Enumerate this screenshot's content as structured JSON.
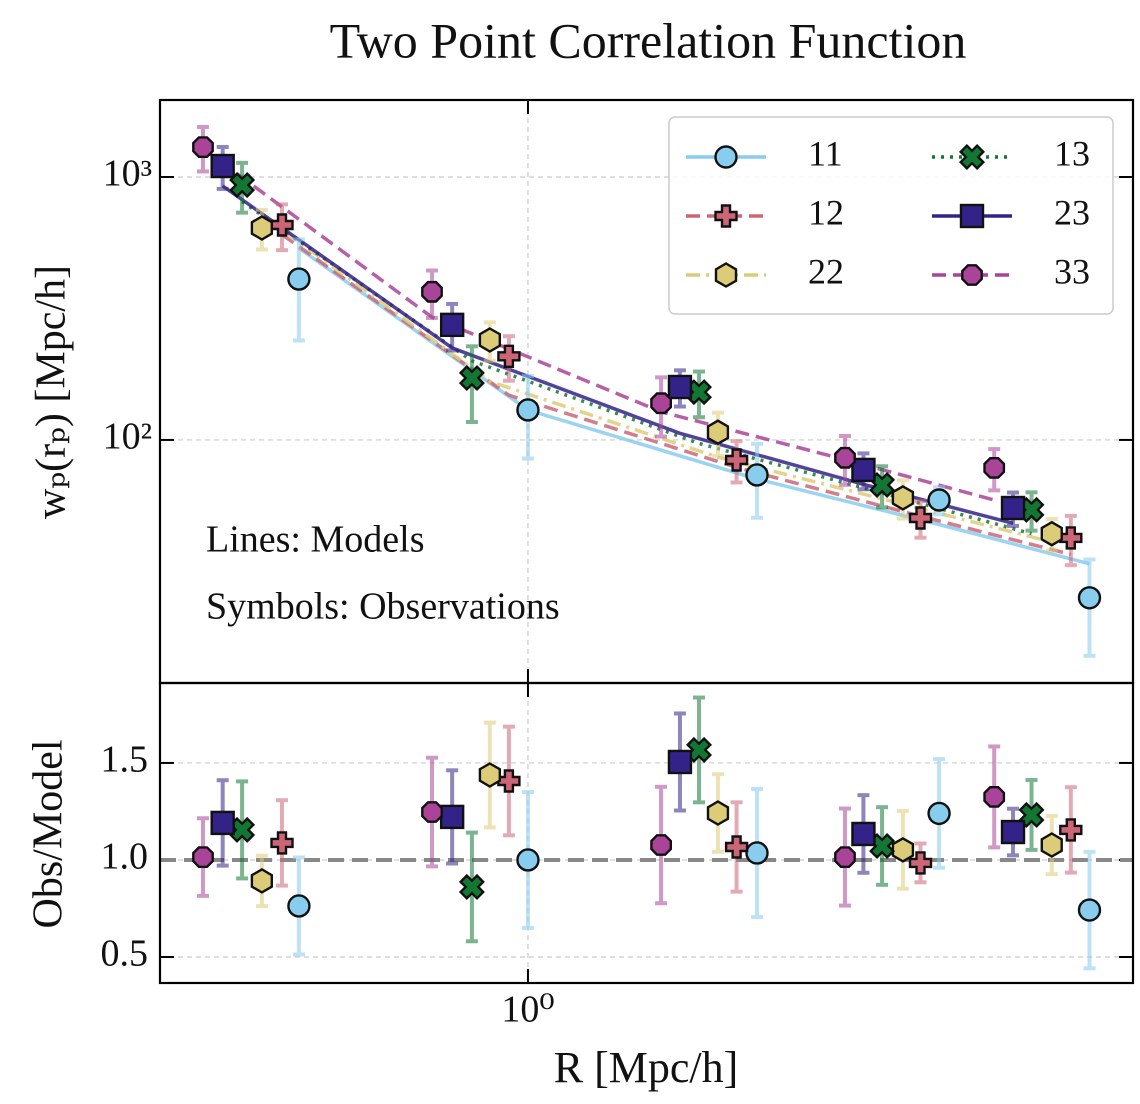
{
  "chart_data": [
    {
      "type": "line",
      "title": "Two Point Correlation Function",
      "ylabel": "wₚ(rₚ) [Mpc/h]",
      "log_x": true,
      "log_y": true,
      "xlim": [
        0.3284,
        6.24
      ],
      "ylim": [
        11.9,
        1963
      ],
      "yticks": [
        {
          "value": 100,
          "label": "10²"
        },
        {
          "value": 1000,
          "label": "10³"
        }
      ],
      "grid": true,
      "legend": "upper right",
      "legend_columns": 2,
      "annotations": [
        "Lines: Models",
        "Symbols: Observations"
      ],
      "series": [
        {
          "name": "11",
          "color": "#88ccee",
          "marker": "circle",
          "linestyle": "solid",
          "x": [
            0.5,
            1.0,
            2.0,
            3.47,
            5.47
          ],
          "values": [
            409,
            130,
            73.6,
            59.1,
            25.1
          ],
          "errors": [
            170,
            45,
            23,
            7,
            10
          ],
          "model": [
            536,
            130,
            71,
            47.7,
            33.8
          ]
        },
        {
          "name": "12",
          "color": "#cc6677",
          "marker": "plus",
          "linestyle": "dashed",
          "x": [
            0.475,
            0.944,
            1.88,
            3.28,
            5.17
          ],
          "values": [
            657,
            208,
            83.9,
            50.5,
            42.4
          ],
          "errors": [
            130,
            40,
            15,
            8,
            9
          ],
          "model": [
            604,
            148,
            78.6,
            51.3,
            36.7
          ]
        },
        {
          "name": "22",
          "color": "#ddcc77",
          "marker": "hexagon",
          "linestyle": "dashdot",
          "x": [
            0.447,
            0.891,
            1.777,
            3.11,
            4.88
          ],
          "values": [
            640,
            240,
            107,
            60.2,
            44
          ],
          "errors": [
            110,
            40,
            20,
            10,
            6
          ],
          "model": [
            717,
            167,
            86,
            57,
            40.9
          ]
        },
        {
          "name": "13",
          "color": "#117733",
          "marker": "x",
          "linestyle": "dotted",
          "x": [
            0.421,
            0.844,
            1.678,
            2.92,
            4.59
          ],
          "values": [
            932,
            172,
            152,
            67.4,
            54.2
          ],
          "errors": [
            200,
            55,
            30,
            12,
            9
          ],
          "model": [
            807,
            200,
            97,
            62.9,
            44
          ]
        },
        {
          "name": "23",
          "color": "#332288",
          "marker": "square",
          "linestyle": "solid",
          "x": [
            0.397,
            0.795,
            1.584,
            2.76,
            4.34
          ],
          "values": [
            1101,
            274,
            159,
            76.9,
            55.1
          ],
          "errors": [
            200,
            55,
            25,
            12,
            8
          ],
          "model": [
            924,
            224,
            106,
            67.8,
            48.2
          ]
        },
        {
          "name": "33",
          "color": "#aa4499",
          "marker": "octagon",
          "linestyle": "dashed",
          "x": [
            0.374,
            0.748,
            1.496,
            2.61,
            4.1
          ],
          "values": [
            1300,
            366,
            138,
            85.5,
            78.3
          ],
          "errors": [
            250,
            75,
            35,
            18,
            14
          ],
          "model": [
            1281,
            293,
            128,
            84.2,
            59.1
          ]
        }
      ]
    },
    {
      "type": "scatter",
      "xlabel": "R [Mpc/h]",
      "ylabel": "Obs/Model",
      "log_x": true,
      "xlim": [
        0.3284,
        6.24
      ],
      "ylim": [
        0.366,
        1.912
      ],
      "xticks": [
        {
          "value": 1,
          "label": "10⁰"
        }
      ],
      "yticks": [
        0.5,
        {
          "value": 1,
          "label": "1.0"
        },
        1.5
      ],
      "grid": true,
      "reference_line": 1,
      "series": [
        {
          "color": "#88ccee",
          "values": [
            0.763,
            1.0,
            1.036,
            1.24,
            0.742
          ],
          "errors": [
            0.25,
            0.35,
            0.33,
            0.28,
            0.3
          ]
        },
        {
          "color": "#cc6677",
          "values": [
            1.088,
            1.407,
            1.067,
            0.985,
            1.155
          ],
          "errors": [
            0.22,
            0.28,
            0.23,
            0.1,
            0.22
          ]
        },
        {
          "color": "#ddcc77",
          "values": [
            0.892,
            1.438,
            1.242,
            1.052,
            1.077
          ],
          "errors": [
            0.13,
            0.27,
            0.2,
            0.2,
            0.15
          ]
        },
        {
          "color": "#117733",
          "values": [
            1.155,
            0.861,
            1.567,
            1.072,
            1.232
          ],
          "errors": [
            0.25,
            0.28,
            0.27,
            0.2,
            0.18
          ]
        },
        {
          "color": "#332288",
          "values": [
            1.191,
            1.222,
            1.505,
            1.134,
            1.144
          ],
          "errors": [
            0.22,
            0.24,
            0.25,
            0.2,
            0.12
          ]
        },
        {
          "color": "#aa4499",
          "values": [
            1.015,
            1.247,
            1.077,
            1.015,
            1.325
          ],
          "errors": [
            0.2,
            0.28,
            0.3,
            0.25,
            0.26
          ]
        }
      ]
    }
  ]
}
